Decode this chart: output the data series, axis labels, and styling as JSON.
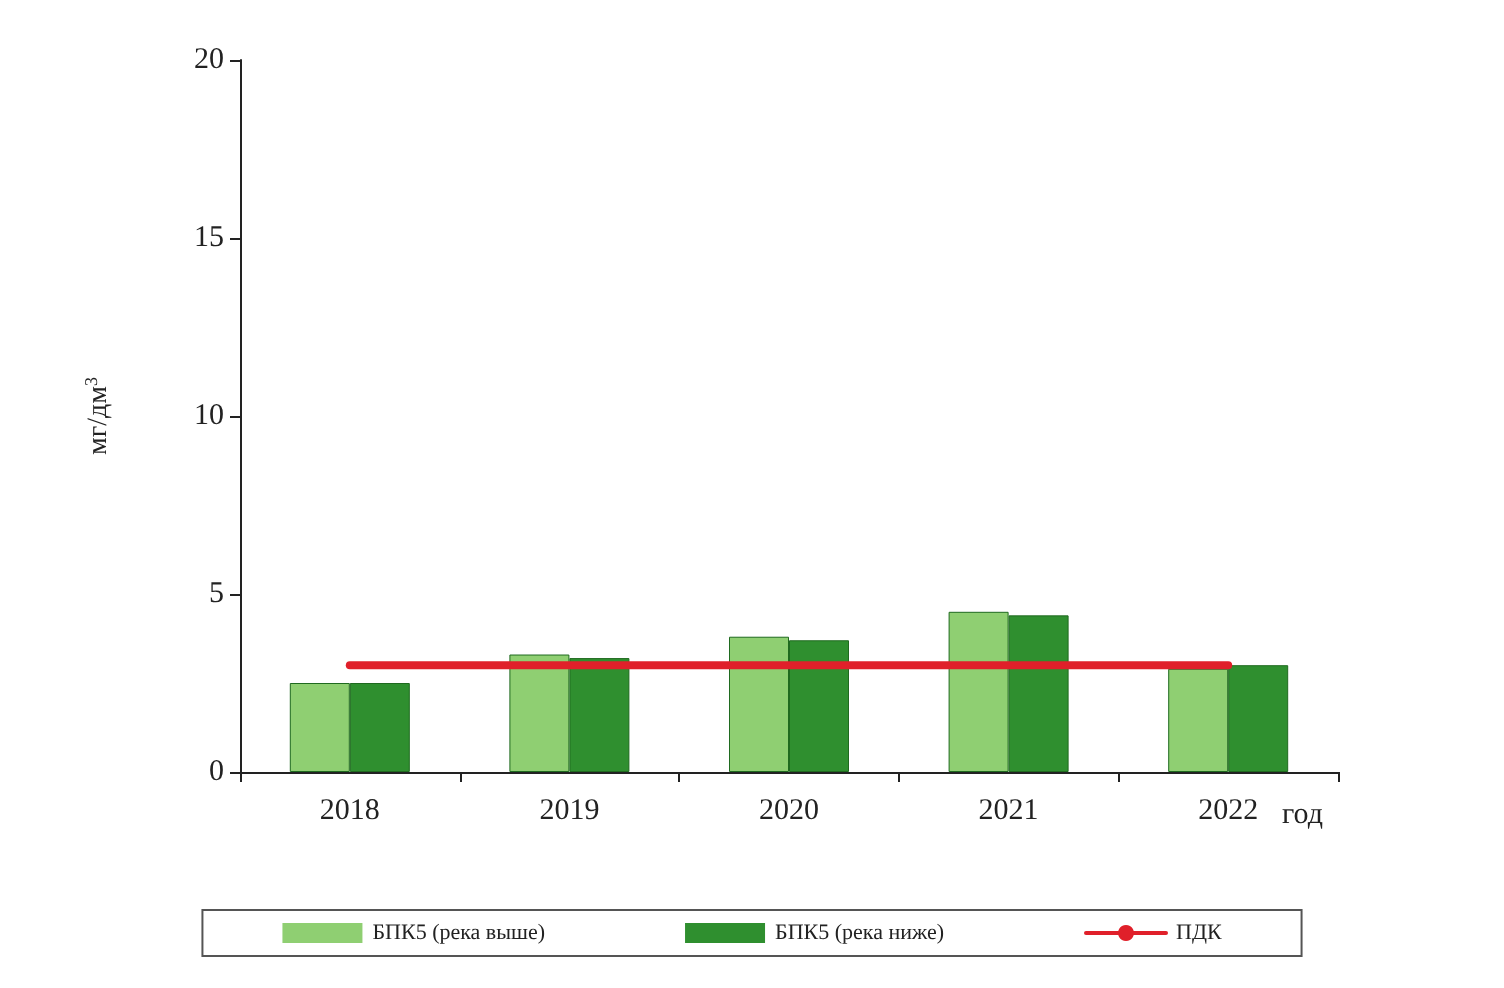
{
  "chart_data": {
    "type": "bar",
    "ylabel": "мг/дм$^{3}$",
    "xlabel": "год",
    "categories": [
      "2018",
      "2019",
      "2020",
      "2021",
      "2022"
    ],
    "series": [
      {
        "name": "БПК5 (река выше)",
        "color": "#8fcf72",
        "values": [
          2.5,
          3.3,
          3.8,
          4.5,
          2.9
        ]
      },
      {
        "name": "БПК5 (река ниже)",
        "color": "#2f8f2f",
        "values": [
          2.5,
          3.2,
          3.7,
          4.4,
          3.0
        ]
      },
      {
        "name": "ПДК",
        "type": "line",
        "color": "#e0202a",
        "values": [
          3,
          3,
          3,
          3,
          3
        ]
      }
    ],
    "ylim": [
      0,
      20
    ],
    "yticks": [
      0,
      5,
      10,
      15,
      20
    ],
    "grid": false,
    "legend": "bottom",
    "marker": "none",
    "line_style": "solid"
  }
}
